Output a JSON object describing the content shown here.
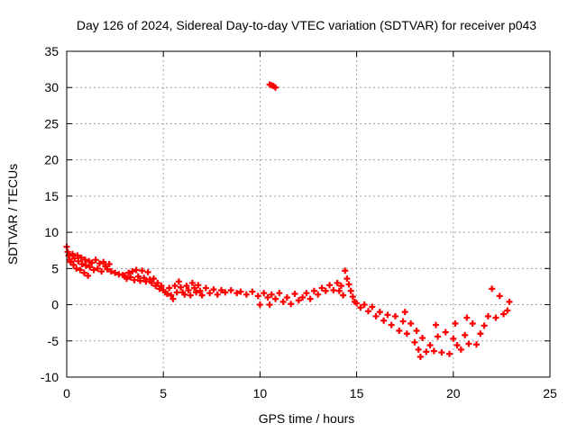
{
  "chart_data": {
    "type": "scatter",
    "title": "Day 126 of 2024, Sidereal Day-to-day VTEC variation (SDTVAR) for receiver p043",
    "xlabel": "GPS time / hours",
    "ylabel": "SDTVAR / TECUs",
    "xlim": [
      0,
      25
    ],
    "ylim": [
      -10,
      35
    ],
    "xticks": [
      0,
      5,
      10,
      15,
      20,
      25
    ],
    "yticks": [
      -10,
      -5,
      0,
      5,
      10,
      15,
      20,
      25,
      30,
      35
    ],
    "grid": true,
    "marker": "plus",
    "color": "#ff0000",
    "series": [
      {
        "name": "SDTVAR",
        "note": "approximate trace read from the plot",
        "points": [
          [
            0.0,
            8.0
          ],
          [
            0.05,
            7.3
          ],
          [
            0.1,
            6.8
          ],
          [
            0.15,
            6.2
          ],
          [
            0.2,
            5.9
          ],
          [
            0.3,
            7.0
          ],
          [
            0.35,
            5.5
          ],
          [
            0.4,
            6.4
          ],
          [
            0.5,
            5.0
          ],
          [
            0.55,
            6.8
          ],
          [
            0.6,
            6.0
          ],
          [
            0.7,
            4.8
          ],
          [
            0.75,
            6.5
          ],
          [
            0.8,
            5.6
          ],
          [
            0.9,
            4.4
          ],
          [
            0.95,
            6.2
          ],
          [
            1.0,
            5.4
          ],
          [
            1.1,
            4.0
          ],
          [
            1.15,
            6.0
          ],
          [
            1.2,
            5.2
          ],
          [
            1.3,
            5.8
          ],
          [
            1.4,
            4.8
          ],
          [
            1.5,
            6.2
          ],
          [
            1.6,
            5.0
          ],
          [
            1.7,
            5.7
          ],
          [
            1.8,
            4.6
          ],
          [
            1.9,
            5.9
          ],
          [
            2.0,
            5.3
          ],
          [
            2.1,
            4.9
          ],
          [
            2.2,
            5.6
          ],
          [
            2.3,
            4.6
          ],
          [
            2.5,
            4.4
          ],
          [
            2.7,
            4.2
          ],
          [
            2.9,
            4.1
          ],
          [
            3.0,
            4.0
          ],
          [
            3.1,
            3.6
          ],
          [
            3.2,
            4.4
          ],
          [
            3.3,
            3.8
          ],
          [
            3.4,
            4.6
          ],
          [
            3.5,
            3.4
          ],
          [
            3.6,
            4.8
          ],
          [
            3.7,
            3.9
          ],
          [
            3.8,
            3.3
          ],
          [
            3.9,
            4.7
          ],
          [
            4.0,
            3.7
          ],
          [
            4.1,
            3.2
          ],
          [
            4.2,
            4.5
          ],
          [
            4.3,
            3.5
          ],
          [
            4.4,
            3.0
          ],
          [
            4.5,
            3.6
          ],
          [
            4.6,
            2.6
          ],
          [
            4.7,
            3.0
          ],
          [
            4.8,
            2.2
          ],
          [
            4.9,
            2.6
          ],
          [
            5.0,
            2.0
          ],
          [
            5.1,
            1.7
          ],
          [
            5.2,
            1.5
          ],
          [
            5.3,
            2.3
          ],
          [
            5.4,
            1.3
          ],
          [
            5.5,
            0.8
          ],
          [
            5.6,
            2.6
          ],
          [
            5.7,
            1.7
          ],
          [
            5.8,
            3.2
          ],
          [
            5.9,
            2.4
          ],
          [
            6.0,
            1.7
          ],
          [
            6.1,
            1.4
          ],
          [
            6.2,
            2.6
          ],
          [
            6.3,
            2.0
          ],
          [
            6.4,
            1.3
          ],
          [
            6.5,
            3.0
          ],
          [
            6.6,
            2.3
          ],
          [
            6.7,
            1.7
          ],
          [
            6.8,
            2.7
          ],
          [
            6.9,
            1.9
          ],
          [
            7.0,
            1.3
          ],
          [
            7.2,
            2.3
          ],
          [
            7.4,
            1.6
          ],
          [
            7.6,
            2.1
          ],
          [
            7.8,
            1.4
          ],
          [
            8.0,
            2.0
          ],
          [
            8.2,
            1.7
          ],
          [
            8.5,
            2.0
          ],
          [
            8.8,
            1.6
          ],
          [
            9.0,
            1.8
          ],
          [
            9.3,
            1.4
          ],
          [
            9.6,
            1.8
          ],
          [
            9.9,
            1.2
          ],
          [
            10.0,
            0.0
          ],
          [
            10.2,
            1.6
          ],
          [
            10.4,
            1.0
          ],
          [
            10.5,
            0.0
          ],
          [
            10.6,
            1.4
          ],
          [
            10.8,
            0.8
          ],
          [
            11.0,
            1.6
          ],
          [
            11.2,
            0.4
          ],
          [
            11.4,
            1.0
          ],
          [
            11.6,
            0.1
          ],
          [
            11.8,
            1.5
          ],
          [
            12.0,
            0.6
          ],
          [
            12.2,
            1.0
          ],
          [
            12.4,
            1.6
          ],
          [
            12.6,
            0.8
          ],
          [
            12.8,
            1.9
          ],
          [
            13.0,
            1.4
          ],
          [
            13.2,
            2.3
          ],
          [
            13.4,
            1.9
          ],
          [
            13.6,
            2.7
          ],
          [
            13.8,
            2.0
          ],
          [
            14.0,
            3.0
          ],
          [
            14.1,
            1.9
          ],
          [
            14.2,
            2.6
          ],
          [
            14.3,
            1.3
          ],
          [
            14.4,
            4.7
          ],
          [
            14.5,
            3.6
          ],
          [
            14.6,
            2.8
          ],
          [
            14.7,
            1.9
          ],
          [
            14.8,
            1.1
          ],
          [
            14.9,
            0.4
          ],
          [
            15.0,
            0.2
          ],
          [
            15.2,
            -0.4
          ],
          [
            15.4,
            0.0
          ],
          [
            15.6,
            -0.9
          ],
          [
            15.8,
            -0.3
          ],
          [
            16.0,
            -1.6
          ],
          [
            16.2,
            -1.0
          ],
          [
            16.4,
            -2.2
          ],
          [
            16.6,
            -1.4
          ],
          [
            16.8,
            -2.8
          ],
          [
            17.0,
            -1.6
          ],
          [
            17.2,
            -3.6
          ],
          [
            17.4,
            -2.3
          ],
          [
            17.5,
            -1.0
          ],
          [
            17.6,
            -4.0
          ],
          [
            17.8,
            -2.6
          ],
          [
            18.0,
            -5.2
          ],
          [
            18.1,
            -3.6
          ],
          [
            18.2,
            -6.2
          ],
          [
            18.3,
            -7.2
          ],
          [
            18.4,
            -4.6
          ],
          [
            18.6,
            -6.5
          ],
          [
            18.8,
            -5.6
          ],
          [
            19.0,
            -6.4
          ],
          [
            19.1,
            -2.8
          ],
          [
            19.2,
            -4.4
          ],
          [
            19.4,
            -6.6
          ],
          [
            19.6,
            -3.8
          ],
          [
            19.8,
            -6.8
          ],
          [
            20.0,
            -4.7
          ],
          [
            20.1,
            -2.6
          ],
          [
            20.2,
            -5.6
          ],
          [
            20.4,
            -6.2
          ],
          [
            20.6,
            -4.2
          ],
          [
            20.7,
            -1.8
          ],
          [
            20.8,
            -5.4
          ],
          [
            21.0,
            -2.6
          ],
          [
            21.2,
            -5.5
          ],
          [
            21.4,
            -4.0
          ],
          [
            21.6,
            -2.9
          ],
          [
            21.8,
            -1.6
          ],
          [
            22.0,
            2.2
          ],
          [
            22.2,
            -1.8
          ],
          [
            22.4,
            1.2
          ],
          [
            22.6,
            -1.3
          ],
          [
            22.8,
            -0.8
          ],
          [
            22.9,
            0.4
          ],
          [
            10.5,
            30.4
          ],
          [
            10.6,
            30.3
          ],
          [
            10.7,
            30.2
          ],
          [
            10.8,
            30.0
          ]
        ]
      }
    ]
  }
}
